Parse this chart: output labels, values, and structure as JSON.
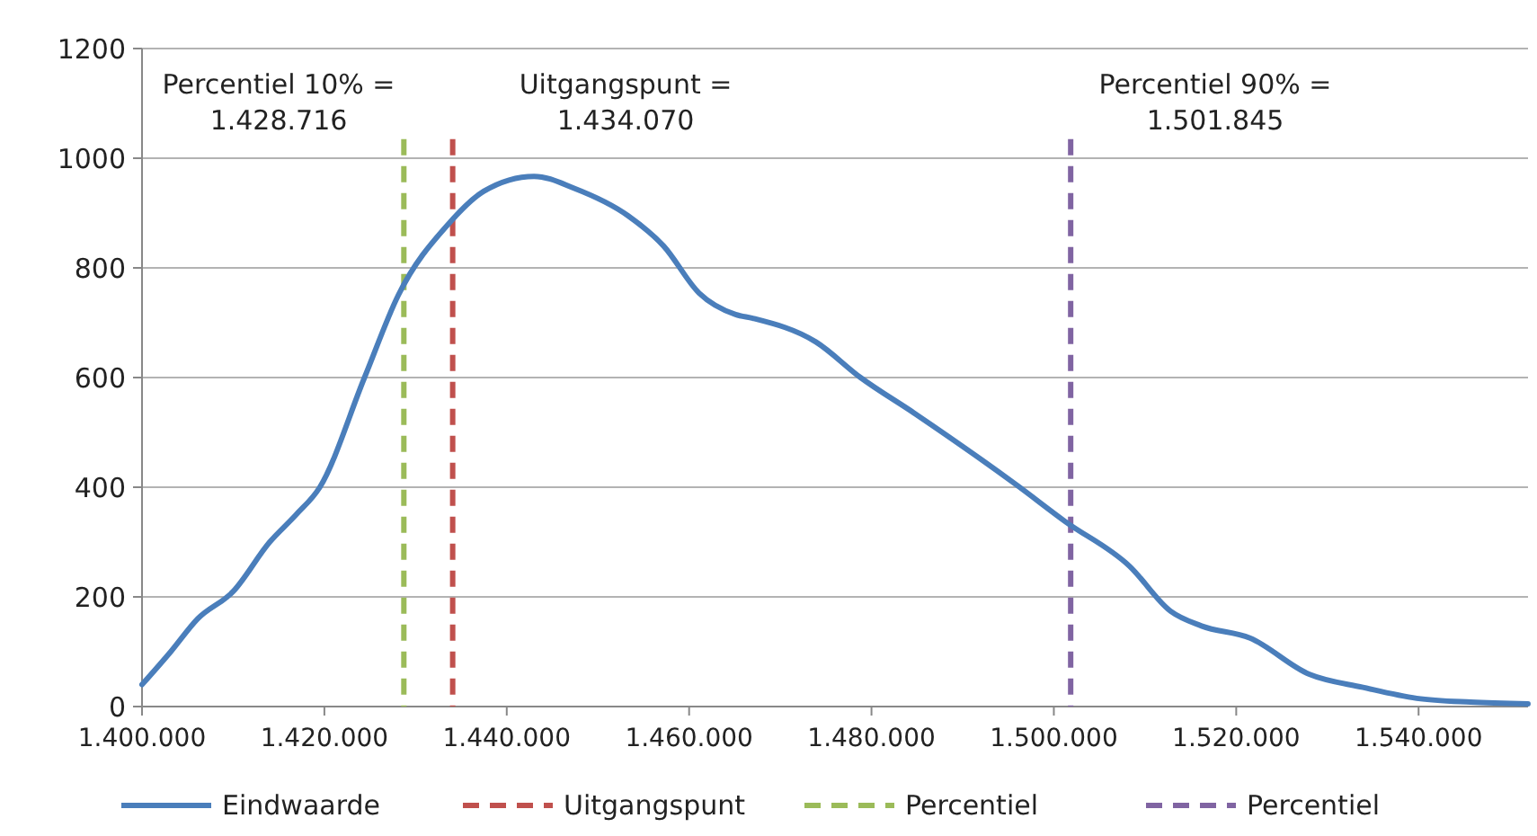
{
  "chart_data": {
    "type": "line",
    "x": [
      1400000,
      1403150,
      1406100,
      1410000,
      1414000,
      1416900,
      1419500,
      1424400,
      1428100,
      1433600,
      1437500,
      1443000,
      1447400,
      1453300,
      1457200,
      1461100,
      1465100,
      1467000,
      1473900,
      1478800,
      1484700,
      1496000,
      1501200,
      1508300,
      1512800,
      1516200,
      1521500,
      1528000,
      1533900,
      1539800,
      1545700,
      1552000
    ],
    "series": [
      {
        "name": "Eindwaarde",
        "color": "#4a7ebb",
        "values": [
          40,
          100,
          160,
          210,
          300,
          350,
          400,
          600,
          750,
          880,
          940,
          967,
          945,
          895,
          840,
          754,
          715,
          708,
          665,
          600,
          535,
          403,
          338,
          256,
          174,
          147,
          125,
          59,
          35,
          15,
          8,
          5
        ]
      }
    ],
    "xlim": [
      1400000,
      1552000
    ],
    "xticks": [
      {
        "value": 1400000,
        "label": "1.400.000"
      },
      {
        "value": 1420000,
        "label": "1.420.000"
      },
      {
        "value": 1440000,
        "label": "1.440.000"
      },
      {
        "value": 1460000,
        "label": "1.460.000"
      },
      {
        "value": 1480000,
        "label": "1.480.000"
      },
      {
        "value": 1500000,
        "label": "1.500.000"
      },
      {
        "value": 1520000,
        "label": "1.520.000"
      },
      {
        "value": 1540000,
        "label": "1.540.000"
      }
    ],
    "ylim": [
      0,
      1200
    ],
    "yticks": [
      0,
      200,
      400,
      600,
      800,
      1000,
      1200
    ],
    "grid": "y",
    "legend": "bottom",
    "line_style": "solid",
    "marker": "none",
    "ref_lines": [
      {
        "axis": "x",
        "value": 1434070,
        "label": "Uitgangspunt",
        "color": "#c0504d",
        "line_style": "dashed"
      },
      {
        "axis": "x",
        "value": 1428716,
        "label": "Percentiel",
        "color": "#9bbb59",
        "line_style": "dashed"
      },
      {
        "axis": "x",
        "value": 1501845,
        "label": "Percentiel",
        "color": "#8064a2",
        "line_style": "dashed"
      }
    ],
    "annotations": [
      "Percentiel 10% =\n1.428.716",
      "Uitgangspunt =\n1.434.070",
      "Percentiel 90% =\n1.501.845"
    ]
  }
}
